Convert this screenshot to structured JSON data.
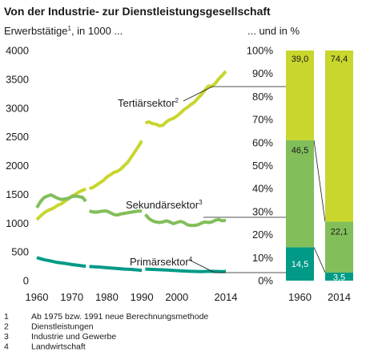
{
  "chart_data": [
    {
      "type": "line",
      "title": "Von der Industrie- zur Dienstleistungsgesellschaft",
      "ylabel": "Erwerbstätige",
      "ylabel_sup": "1",
      "ylabel_rest": ", in 1000 ...",
      "xlim": [
        1960,
        2014
      ],
      "ylim": [
        0,
        4000
      ],
      "x_ticks": [
        1960,
        1970,
        1980,
        1990,
        2000,
        2014
      ],
      "y_ticks": [
        0,
        500,
        1000,
        1500,
        2000,
        2500,
        3000,
        3500,
        4000
      ],
      "grid": false,
      "colors": {
        "tertiary": "#c8d62e",
        "secondary": "#82be5a",
        "primary": "#009a86"
      },
      "series": [
        {
          "name": "Tertiärsektor",
          "name_sup": "2",
          "segments": [
            {
              "x": [
                1960,
                1961,
                1962,
                1963,
                1964,
                1965,
                1966,
                1967,
                1968,
                1969,
                1970,
                1971,
                1972,
                1973,
                1974
              ],
              "y": [
                1060,
                1120,
                1175,
                1215,
                1240,
                1270,
                1310,
                1335,
                1380,
                1420,
                1470,
                1500,
                1540,
                1570,
                1590
              ]
            },
            {
              "x": [
                1975,
                1976,
                1977,
                1978,
                1979,
                1980,
                1981,
                1982,
                1983,
                1984,
                1985,
                1986,
                1987,
                1988,
                1989,
                1990
              ],
              "y": [
                1600,
                1620,
                1660,
                1700,
                1740,
                1800,
                1840,
                1880,
                1900,
                1940,
                2000,
                2060,
                2150,
                2240,
                2330,
                2430
              ]
            },
            {
              "x": [
                1991,
                1992,
                1993,
                1994,
                1995,
                1996,
                1997,
                1998,
                1999,
                2000,
                2001,
                2002,
                2003,
                2004,
                2005,
                2006,
                2007,
                2008,
                2009,
                2010,
                2011,
                2012,
                2013,
                2014
              ],
              "y": [
                2740,
                2760,
                2730,
                2720,
                2690,
                2700,
                2760,
                2800,
                2820,
                2860,
                2910,
                2970,
                3010,
                3060,
                3100,
                3170,
                3230,
                3310,
                3380,
                3380,
                3430,
                3510,
                3570,
                3640
              ]
            }
          ]
        },
        {
          "name": "Sekundärsektor",
          "name_sup": "3",
          "segments": [
            {
              "x": [
                1960,
                1961,
                1962,
                1963,
                1964,
                1965,
                1966,
                1967,
                1968,
                1969,
                1970,
                1971,
                1972,
                1973,
                1974
              ],
              "y": [
                1270,
                1370,
                1440,
                1470,
                1490,
                1460,
                1430,
                1410,
                1420,
                1430,
                1460,
                1470,
                1460,
                1450,
                1380
              ]
            },
            {
              "x": [
                1975,
                1976,
                1977,
                1978,
                1979,
                1980,
                1981,
                1982,
                1983,
                1984,
                1985,
                1986,
                1987,
                1988,
                1989,
                1990
              ],
              "y": [
                1210,
                1195,
                1190,
                1200,
                1210,
                1210,
                1180,
                1150,
                1140,
                1160,
                1170,
                1180,
                1190,
                1200,
                1210,
                1210
              ]
            },
            {
              "x": [
                1991,
                1992,
                1993,
                1994,
                1995,
                1996,
                1997,
                1998,
                1999,
                2000,
                2001,
                2002,
                2003,
                2004,
                2005,
                2006,
                2007,
                2008,
                2009,
                2010,
                2011,
                2012,
                2013,
                2014
              ],
              "y": [
                1150,
                1080,
                1040,
                1020,
                1010,
                1020,
                1040,
                1020,
                990,
                1010,
                1030,
                1010,
                970,
                960,
                960,
                970,
                1000,
                1020,
                1010,
                1020,
                1050,
                1060,
                1040,
                1050
              ]
            }
          ]
        },
        {
          "name": "Primärsektor",
          "name_sup": "4",
          "segments": [
            {
              "x": [
                1960,
                1962,
                1964,
                1966,
                1968,
                1970,
                1972,
                1974
              ],
              "y": [
                400,
                365,
                340,
                315,
                300,
                280,
                265,
                250
              ]
            },
            {
              "x": [
                1975,
                1977,
                1979,
                1981,
                1983,
                1985,
                1987,
                1989,
                1990
              ],
              "y": [
                245,
                238,
                230,
                220,
                210,
                200,
                195,
                185,
                175
              ]
            },
            {
              "x": [
                1991,
                1993,
                1995,
                1997,
                1999,
                2001,
                2003,
                2005,
                2007,
                2009,
                2011,
                2013,
                2014
              ],
              "y": [
                200,
                195,
                190,
                185,
                178,
                170,
                165,
                160,
                158,
                162,
                160,
                158,
                160
              ]
            }
          ]
        }
      ]
    },
    {
      "type": "bar",
      "stacked": true,
      "ylabel": "... und in %",
      "categories": [
        "1960",
        "2014"
      ],
      "y_ticks": [
        "0%",
        "10%",
        "20%",
        "30%",
        "40%",
        "50%",
        "60%",
        "70%",
        "80%",
        "90%",
        "100%"
      ],
      "ylim": [
        0,
        100
      ],
      "series": [
        {
          "name": "Primärsektor",
          "values": [
            14.5,
            3.5
          ],
          "labels": [
            "14,5",
            "3,5"
          ]
        },
        {
          "name": "Sekundärsektor",
          "values": [
            46.5,
            22.1
          ],
          "labels": [
            "46,5",
            "22,1"
          ]
        },
        {
          "name": "Tertiärsektor",
          "values": [
            39.0,
            74.4
          ],
          "labels": [
            "39,0",
            "74,4"
          ]
        }
      ]
    }
  ],
  "footnotes": [
    {
      "num": "1",
      "text": "Ab 1975 bzw. 1991 neue Berechnungsmethode"
    },
    {
      "num": "2",
      "text": "Dienstleistungen"
    },
    {
      "num": "3",
      "text": "Industrie und Gewerbe"
    },
    {
      "num": "4",
      "text": "Landwirtschaft"
    }
  ]
}
